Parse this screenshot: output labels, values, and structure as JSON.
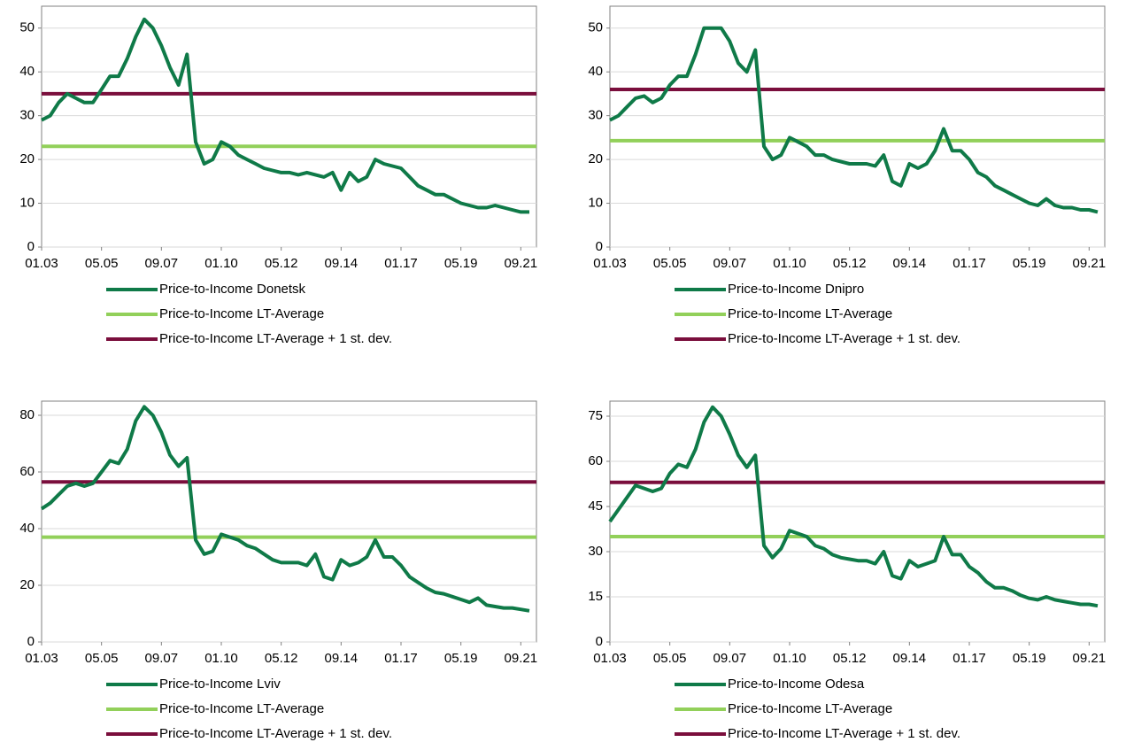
{
  "chart_data": [
    {
      "type": "line",
      "categories": [
        "01.03",
        null,
        null,
        null,
        null,
        null,
        null,
        "05.05",
        null,
        null,
        null,
        null,
        null,
        null,
        "09.07",
        null,
        null,
        null,
        null,
        null,
        null,
        "01.10",
        null,
        null,
        null,
        null,
        null,
        null,
        "05.12",
        null,
        null,
        null,
        null,
        null,
        null,
        "09.14",
        null,
        null,
        null,
        null,
        null,
        null,
        "01.17",
        null,
        null,
        null,
        null,
        null,
        null,
        "05.19",
        null,
        null,
        null,
        null,
        null,
        null,
        "09.21",
        null
      ],
      "series": [
        {
          "name": "Price-to-Income Donetsk",
          "color": "#0f7a48",
          "values": [
            29,
            30,
            33,
            35,
            34,
            33,
            33,
            36,
            39,
            39,
            43,
            48,
            52,
            50,
            46,
            41,
            37,
            44,
            24,
            19,
            20,
            24,
            23,
            21,
            20,
            19,
            18,
            17.5,
            17,
            17,
            16.5,
            17,
            16.5,
            16,
            17,
            13,
            17,
            15,
            16,
            20,
            19,
            18.5,
            18,
            16,
            14,
            13,
            12,
            12,
            11,
            10,
            9.5,
            9,
            9,
            9.5,
            9,
            8.5,
            8,
            8
          ]
        }
      ],
      "reference_lines": [
        {
          "name": "Price-to-Income LT-Average",
          "color": "#92d05a",
          "value": 23
        },
        {
          "name": "Price-to-Income LT-Average + 1 st. dev.",
          "color": "#7a0e3c",
          "value": 35
        }
      ],
      "ylim": [
        0,
        55
      ],
      "yticks": [
        0,
        10,
        20,
        30,
        40,
        50
      ],
      "grid": true
    },
    {
      "type": "line",
      "categories": [
        "01.03",
        null,
        null,
        null,
        null,
        null,
        null,
        "05.05",
        null,
        null,
        null,
        null,
        null,
        null,
        "09.07",
        null,
        null,
        null,
        null,
        null,
        null,
        "01.10",
        null,
        null,
        null,
        null,
        null,
        null,
        "05.12",
        null,
        null,
        null,
        null,
        null,
        null,
        "09.14",
        null,
        null,
        null,
        null,
        null,
        null,
        "01.17",
        null,
        null,
        null,
        null,
        null,
        null,
        "05.19",
        null,
        null,
        null,
        null,
        null,
        null,
        "09.21",
        null
      ],
      "series": [
        {
          "name": "Price-to-Income Dnipro",
          "color": "#0f7a48",
          "values": [
            29,
            30,
            32,
            34,
            34.5,
            33,
            34,
            37,
            39,
            39,
            44,
            50,
            50,
            50,
            47,
            42,
            40,
            45,
            23,
            20,
            21,
            25,
            24,
            23,
            21,
            21,
            20,
            19.5,
            19,
            19,
            19,
            18.5,
            21,
            15,
            14,
            19,
            18,
            19,
            22,
            27,
            22,
            22,
            20,
            17,
            16,
            14,
            13,
            12,
            11,
            10,
            9.5,
            11,
            9.5,
            9,
            9,
            8.5,
            8.5,
            8
          ]
        }
      ],
      "reference_lines": [
        {
          "name": "Price-to-Income LT-Average",
          "color": "#92d05a",
          "value": 24.3
        },
        {
          "name": "Price-to-Income LT-Average + 1 st. dev.",
          "color": "#7a0e3c",
          "value": 36
        }
      ],
      "ylim": [
        0,
        55
      ],
      "yticks": [
        0,
        10,
        20,
        30,
        40,
        50
      ],
      "grid": true
    },
    {
      "type": "line",
      "categories": [
        "01.03",
        null,
        null,
        null,
        null,
        null,
        null,
        "05.05",
        null,
        null,
        null,
        null,
        null,
        null,
        "09.07",
        null,
        null,
        null,
        null,
        null,
        null,
        "01.10",
        null,
        null,
        null,
        null,
        null,
        null,
        "05.12",
        null,
        null,
        null,
        null,
        null,
        null,
        "09.14",
        null,
        null,
        null,
        null,
        null,
        null,
        "01.17",
        null,
        null,
        null,
        null,
        null,
        null,
        "05.19",
        null,
        null,
        null,
        null,
        null,
        null,
        "09.21",
        null
      ],
      "series": [
        {
          "name": "Price-to-Income Lviv",
          "color": "#0f7a48",
          "values": [
            47,
            49,
            52,
            55,
            56,
            55,
            56,
            60,
            64,
            63,
            68,
            78,
            83,
            80,
            74,
            66,
            62,
            65,
            36,
            31,
            32,
            38,
            37,
            36,
            34,
            33,
            31,
            29,
            28,
            28,
            28,
            27,
            31,
            23,
            22,
            29,
            27,
            28,
            30,
            36,
            30,
            30,
            27,
            23,
            21,
            19,
            17.5,
            17,
            16,
            15,
            14,
            15.5,
            13,
            12.5,
            12,
            12,
            11.5,
            11
          ]
        }
      ],
      "reference_lines": [
        {
          "name": "Price-to-Income LT-Average",
          "color": "#92d05a",
          "value": 37
        },
        {
          "name": "Price-to-Income LT-Average + 1 st. dev.",
          "color": "#7a0e3c",
          "value": 56.5
        }
      ],
      "ylim": [
        0,
        85
      ],
      "yticks": [
        0,
        20,
        40,
        60,
        80
      ],
      "grid": true
    },
    {
      "type": "line",
      "categories": [
        "01.03",
        null,
        null,
        null,
        null,
        null,
        null,
        "05.05",
        null,
        null,
        null,
        null,
        null,
        null,
        "09.07",
        null,
        null,
        null,
        null,
        null,
        null,
        "01.10",
        null,
        null,
        null,
        null,
        null,
        null,
        "05.12",
        null,
        null,
        null,
        null,
        null,
        null,
        "09.14",
        null,
        null,
        null,
        null,
        null,
        null,
        "01.17",
        null,
        null,
        null,
        null,
        null,
        null,
        "05.19",
        null,
        null,
        null,
        null,
        null,
        null,
        "09.21",
        null
      ],
      "series": [
        {
          "name": "Price-to-Income Odesa",
          "color": "#0f7a48",
          "values": [
            40,
            44,
            48,
            52,
            51,
            50,
            51,
            56,
            59,
            58,
            64,
            73,
            78,
            75,
            69,
            62,
            58,
            62,
            32,
            28,
            31,
            37,
            36,
            35,
            32,
            31,
            29,
            28,
            27.5,
            27,
            27,
            26,
            30,
            22,
            21,
            27,
            25,
            26,
            27,
            35,
            29,
            29,
            25,
            23,
            20,
            18,
            18,
            17,
            15.5,
            14.5,
            14,
            15,
            14,
            13.5,
            13,
            12.5,
            12.5,
            12
          ]
        }
      ],
      "reference_lines": [
        {
          "name": "Price-to-Income LT-Average",
          "color": "#92d05a",
          "value": 35
        },
        {
          "name": "Price-to-Income LT-Average + 1 st. dev.",
          "color": "#7a0e3c",
          "value": 53
        }
      ],
      "ylim": [
        0,
        80
      ],
      "yticks": [
        0,
        15,
        30,
        45,
        60,
        75
      ],
      "grid": true
    }
  ]
}
